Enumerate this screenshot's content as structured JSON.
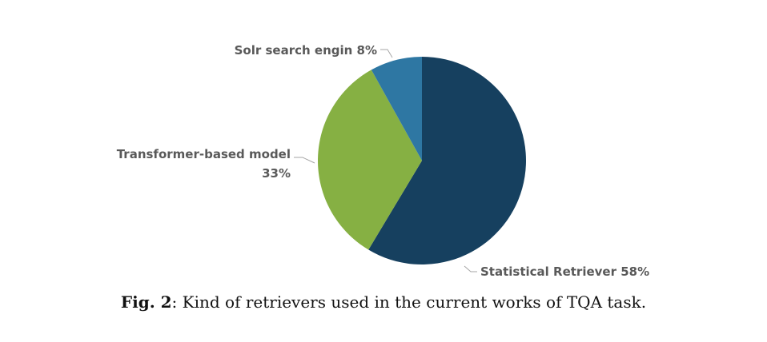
{
  "chart_data": {
    "type": "pie",
    "slices": [
      {
        "label": "Statistical Retriever",
        "value": 58,
        "value_label": "58%",
        "color": "#16405f"
      },
      {
        "label": "Transformer-based model",
        "value": 33,
        "value_label": "33%",
        "color": "#86b043"
      },
      {
        "label": "Solr search engin",
        "value": 8,
        "value_label": "8%",
        "color": "#2e77a3"
      }
    ],
    "label_color": "#595959",
    "leader_color": "#a6a6a6"
  },
  "caption": {
    "prefix": "Fig. 2",
    "text": ": Kind of retrievers used in the current works of TQA task."
  }
}
